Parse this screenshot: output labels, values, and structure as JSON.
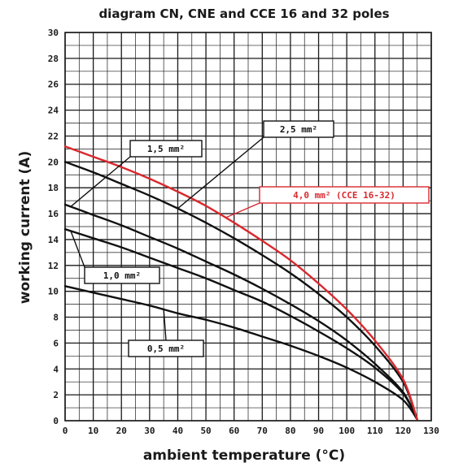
{
  "chart_data": {
    "type": "line",
    "title": "diagram CN, CNE and CCE 16 and 32 poles",
    "xlabel": "ambient temperature (°C)",
    "ylabel": "working current (A)",
    "xlim": [
      0,
      130
    ],
    "ylim": [
      0,
      30
    ],
    "x_ticks": [
      "0",
      "10",
      "20",
      "30",
      "40",
      "50",
      "60",
      "70",
      "80",
      "90",
      "100",
      "110",
      "120",
      "130"
    ],
    "y_ticks": [
      "0",
      "2",
      "4",
      "6",
      "8",
      "10",
      "12",
      "14",
      "16",
      "18",
      "20",
      "22",
      "24",
      "26",
      "28",
      "30"
    ],
    "grid": true,
    "series": [
      {
        "name": "0,5 mm²",
        "color": "#111111",
        "x": [
          0,
          10,
          20,
          30,
          40,
          50,
          60,
          70,
          80,
          90,
          100,
          110,
          120,
          125
        ],
        "y": [
          10.4,
          9.9,
          9.4,
          8.9,
          8.3,
          7.8,
          7.2,
          6.5,
          5.8,
          5.0,
          4.1,
          3.0,
          1.6,
          0.1
        ]
      },
      {
        "name": "1,0 mm²",
        "color": "#111111",
        "x": [
          0,
          10,
          20,
          30,
          40,
          50,
          60,
          70,
          80,
          90,
          100,
          110,
          120,
          125
        ],
        "y": [
          14.8,
          14.1,
          13.4,
          12.6,
          11.8,
          11.0,
          10.1,
          9.2,
          8.1,
          6.9,
          5.6,
          4.1,
          2.1,
          0.1
        ]
      },
      {
        "name": "1,5 mm²",
        "color": "#111111",
        "x": [
          0,
          10,
          20,
          30,
          40,
          50,
          60,
          70,
          80,
          90,
          100,
          110,
          120,
          125
        ],
        "y": [
          16.7,
          15.9,
          15.1,
          14.2,
          13.3,
          12.3,
          11.3,
          10.2,
          9.0,
          7.7,
          6.2,
          4.4,
          2.2,
          0.1
        ]
      },
      {
        "name": "2,5 mm²",
        "color": "#111111",
        "x": [
          0,
          10,
          20,
          30,
          40,
          50,
          60,
          70,
          80,
          90,
          100,
          110,
          120,
          125
        ],
        "y": [
          20.0,
          19.2,
          18.3,
          17.4,
          16.4,
          15.3,
          14.1,
          12.8,
          11.4,
          9.8,
          8.0,
          5.8,
          3.0,
          0.1
        ]
      },
      {
        "name": "4,0 mm² (CCE 16-32)",
        "color": "#d9292e",
        "x": [
          0,
          10,
          20,
          30,
          40,
          50,
          60,
          70,
          80,
          90,
          100,
          110,
          120,
          125
        ],
        "y": [
          21.2,
          20.4,
          19.6,
          18.7,
          17.7,
          16.6,
          15.3,
          13.9,
          12.4,
          10.6,
          8.6,
          6.2,
          3.2,
          0.1
        ]
      }
    ]
  }
}
